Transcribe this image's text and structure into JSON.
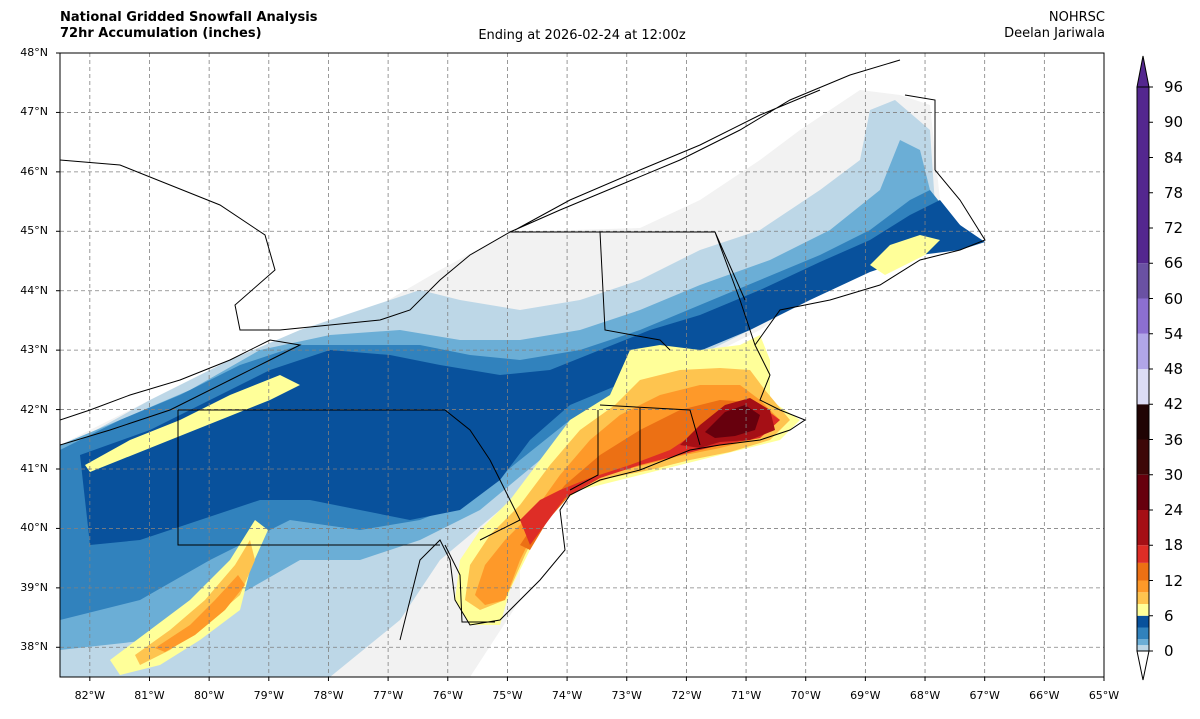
{
  "header": {
    "title_line1": "National Gridded Snowfall Analysis",
    "title_line2": "72hr Accumulation (inches)",
    "center": "Ending at 2026-02-24 at 12:00z",
    "right_line1": "NOHRSC",
    "right_line2": "Deelan Jariwala"
  },
  "map": {
    "lat_labels": [
      "48°N",
      "47°N",
      "46°N",
      "45°N",
      "44°N",
      "43°N",
      "42°N",
      "41°N",
      "40°N",
      "39°N",
      "38°N"
    ],
    "lon_labels": [
      "82°W",
      "81°W",
      "80°W",
      "79°W",
      "78°W",
      "77°W",
      "76°W",
      "75°W",
      "74°W",
      "73°W",
      "72°W",
      "71°W",
      "70°W",
      "69°W",
      "68°W",
      "67°W",
      "66°W",
      "65°W"
    ],
    "extent": {
      "lon_min": -82.5,
      "lon_max": -65,
      "lat_min": 37.5,
      "lat_max": 48
    }
  },
  "colorbar": {
    "ticks": [
      "0",
      "6",
      "12",
      "18",
      "24",
      "30",
      "36",
      "42",
      "48",
      "54",
      "60",
      "66",
      "72",
      "78",
      "84",
      "90",
      "96"
    ],
    "colors": [
      "#ffffff",
      "#bdd7e7",
      "#6baed6",
      "#3182bd",
      "#08519c",
      "#ffff99",
      "#fec44f",
      "#fe9929",
      "#ec7014",
      "#de2d26",
      "#a50f15",
      "#67000d",
      "#3d0707",
      "#200404",
      "#dcdcf5",
      "#b1a6e8",
      "#8c6fd1",
      "#6a51a3",
      "#54278f"
    ],
    "boundaries": [
      0,
      1,
      2,
      4,
      6,
      8,
      10,
      12,
      15,
      18,
      24,
      30,
      36,
      42,
      48,
      54,
      60,
      66,
      72,
      96
    ]
  }
}
